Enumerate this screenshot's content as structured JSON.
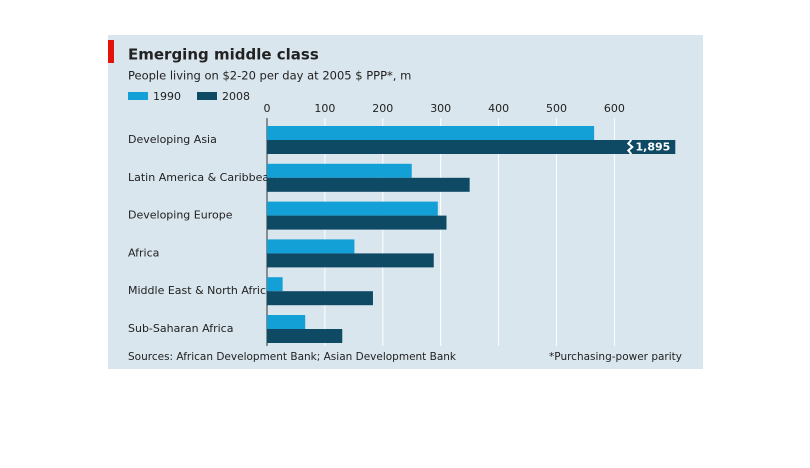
{
  "chart_data": {
    "type": "bar",
    "orientation": "horizontal",
    "title": "Emerging middle class",
    "subtitle": "People living on $2-20 per day at 2005 $ PPP*, m",
    "categories": [
      "Developing Asia",
      "Latin America & Caribbean",
      "Developing Europe",
      "Africa",
      "Middle East & North Africa",
      "Sub-Saharan Africa"
    ],
    "series": [
      {
        "name": "1990",
        "color": "#12a0d7",
        "values": [
          565,
          250,
          295,
          151,
          27,
          66
        ]
      },
      {
        "name": "2008",
        "color": "#0f4a64",
        "values": [
          1895,
          350,
          310,
          288,
          183,
          130
        ],
        "value_labels": [
          "1,895",
          null,
          null,
          null,
          null,
          null
        ]
      }
    ],
    "xlim": [
      0,
      700
    ],
    "xticks": [
      0,
      100,
      200,
      300,
      400,
      500,
      600
    ],
    "grid": true,
    "legend": "top-left",
    "source": "Sources: African Development Bank; Asian Development Bank",
    "footnote": "*Purchasing-power parity"
  }
}
